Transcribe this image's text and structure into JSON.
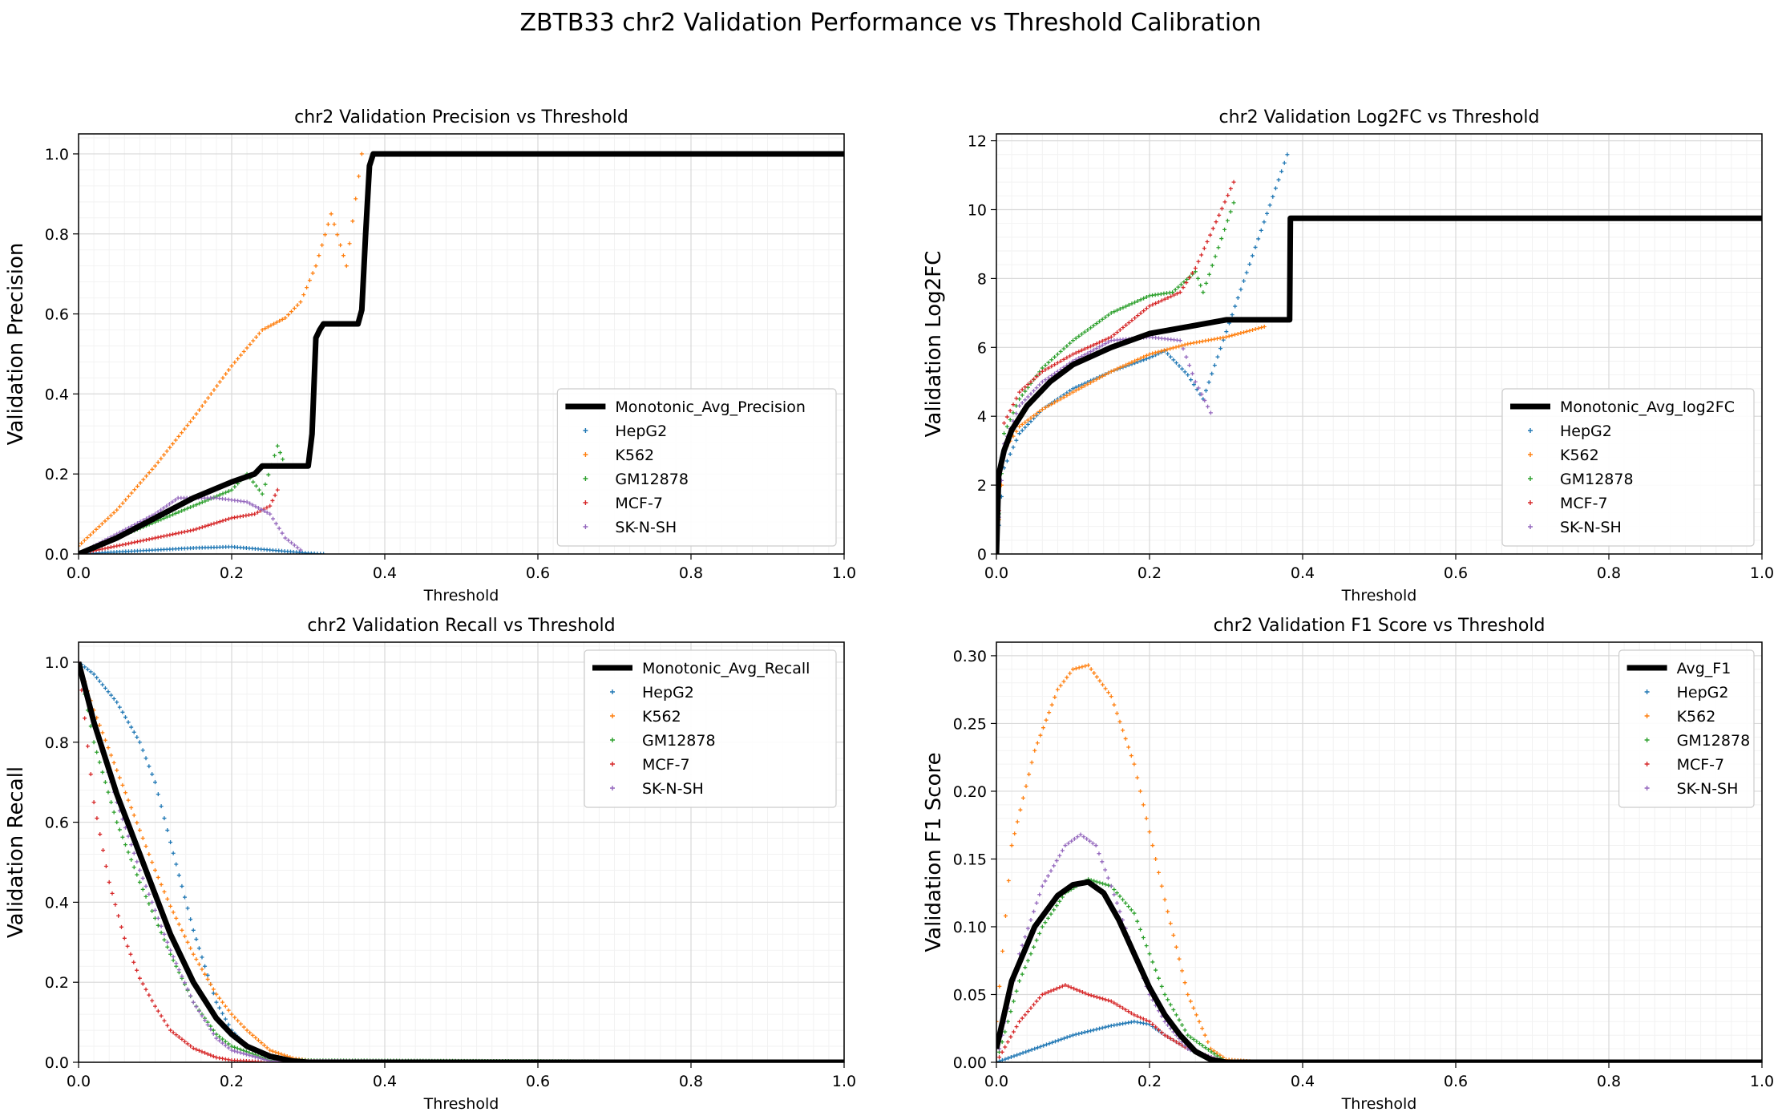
{
  "figure_title": "ZBTB33 chr2 Validation Performance vs Threshold Calibration",
  "colors": {
    "HepG2": "#1f77b4",
    "K562": "#ff7f0e",
    "GM12878": "#2ca02c",
    "MCF-7": "#d62728",
    "SK-N-SH": "#9467bd",
    "avg": "#000000"
  },
  "chart_data": [
    {
      "type": "line",
      "title": "chr2 Validation Precision vs Threshold",
      "xlabel": "Threshold",
      "ylabel": "Validation Precision",
      "xlim": [
        0,
        1
      ],
      "ylim": [
        0,
        1.05
      ],
      "xticks": [
        0.0,
        0.2,
        0.4,
        0.6,
        0.8,
        1.0
      ],
      "yticks": [
        0.0,
        0.2,
        0.4,
        0.6,
        0.8,
        1.0
      ],
      "tick_format": 1,
      "grid": true,
      "legend_position": "lower-right",
      "legend": [
        "Monotonic_Avg_Precision",
        "HepG2",
        "K562",
        "GM12878",
        "MCF-7",
        "SK-N-SH"
      ],
      "avg": {
        "name": "Monotonic_Avg_Precision",
        "x": [
          0,
          0.05,
          0.1,
          0.15,
          0.2,
          0.23,
          0.24,
          0.3,
          0.305,
          0.31,
          0.315,
          0.32,
          0.33,
          0.365,
          0.37,
          0.375,
          0.38,
          0.385,
          1.0
        ],
        "y": [
          0,
          0.04,
          0.09,
          0.14,
          0.18,
          0.2,
          0.22,
          0.22,
          0.3,
          0.54,
          0.56,
          0.575,
          0.575,
          0.575,
          0.61,
          0.8,
          0.97,
          1.0,
          1.0
        ]
      },
      "series": [
        {
          "name": "HepG2",
          "x": [
            0,
            0.05,
            0.1,
            0.15,
            0.2,
            0.25,
            0.3,
            0.32
          ],
          "y": [
            0,
            0.005,
            0.01,
            0.015,
            0.018,
            0.01,
            0.002,
            0.0
          ]
        },
        {
          "name": "K562",
          "x": [
            0,
            0.05,
            0.1,
            0.15,
            0.2,
            0.24,
            0.27,
            0.29,
            0.31,
            0.33,
            0.35,
            0.37
          ],
          "y": [
            0.02,
            0.11,
            0.22,
            0.34,
            0.47,
            0.56,
            0.59,
            0.63,
            0.72,
            0.85,
            0.72,
            1.0
          ]
        },
        {
          "name": "GM12878",
          "x": [
            0,
            0.05,
            0.1,
            0.15,
            0.2,
            0.22,
            0.24,
            0.26,
            0.27
          ],
          "y": [
            0,
            0.04,
            0.08,
            0.12,
            0.16,
            0.2,
            0.15,
            0.27,
            0.22
          ]
        },
        {
          "name": "MCF-7",
          "x": [
            0,
            0.05,
            0.1,
            0.15,
            0.2,
            0.23,
            0.25,
            0.26
          ],
          "y": [
            0,
            0.02,
            0.04,
            0.06,
            0.09,
            0.1,
            0.12,
            0.16
          ]
        },
        {
          "name": "SK-N-SH",
          "x": [
            0,
            0.05,
            0.1,
            0.13,
            0.18,
            0.22,
            0.25,
            0.27,
            0.29
          ],
          "y": [
            0,
            0.05,
            0.1,
            0.14,
            0.14,
            0.13,
            0.1,
            0.04,
            0.01
          ]
        }
      ]
    },
    {
      "type": "line",
      "title": "chr2 Validation Log2FC vs Threshold",
      "xlabel": "Threshold",
      "ylabel": "Validation Log2FC",
      "xlim": [
        0,
        1
      ],
      "ylim": [
        0,
        12.2
      ],
      "xticks": [
        0.0,
        0.2,
        0.4,
        0.6,
        0.8,
        1.0
      ],
      "yticks": [
        0,
        2,
        4,
        6,
        8,
        10,
        12
      ],
      "tick_format": 0,
      "grid": true,
      "legend_position": "lower-right",
      "legend": [
        "Monotonic_Avg_log2FC",
        "HepG2",
        "K562",
        "GM12878",
        "MCF-7",
        "SK-N-SH"
      ],
      "avg": {
        "name": "Monotonic_Avg_log2FC",
        "x": [
          0,
          0.003,
          0.01,
          0.02,
          0.04,
          0.07,
          0.1,
          0.15,
          0.2,
          0.25,
          0.3,
          0.383,
          0.384,
          1.0
        ],
        "y": [
          0,
          2.3,
          3.0,
          3.6,
          4.3,
          5.0,
          5.5,
          6.0,
          6.4,
          6.6,
          6.8,
          6.8,
          9.75,
          9.75
        ]
      },
      "series": [
        {
          "name": "HepG2",
          "x": [
            0,
            0.01,
            0.03,
            0.06,
            0.1,
            0.15,
            0.2,
            0.22,
            0.25,
            0.27,
            0.38
          ],
          "y": [
            0,
            2.5,
            3.5,
            4.2,
            4.8,
            5.3,
            5.7,
            5.9,
            5.2,
            4.5,
            11.6
          ]
        },
        {
          "name": "K562",
          "x": [
            0,
            0.01,
            0.03,
            0.06,
            0.1,
            0.15,
            0.2,
            0.25,
            0.3,
            0.35
          ],
          "y": [
            0,
            3.0,
            3.7,
            4.2,
            4.7,
            5.3,
            5.8,
            6.1,
            6.3,
            6.6
          ]
        },
        {
          "name": "GM12878",
          "x": [
            0,
            0.01,
            0.03,
            0.06,
            0.1,
            0.15,
            0.2,
            0.23,
            0.26,
            0.27,
            0.31
          ],
          "y": [
            0,
            3.5,
            4.5,
            5.4,
            6.2,
            7.0,
            7.5,
            7.6,
            8.2,
            7.6,
            10.2
          ]
        },
        {
          "name": "MCF-7",
          "x": [
            0,
            0.01,
            0.03,
            0.06,
            0.1,
            0.15,
            0.2,
            0.24,
            0.26,
            0.31
          ],
          "y": [
            0,
            3.8,
            4.7,
            5.3,
            5.8,
            6.3,
            7.2,
            7.6,
            8.3,
            10.8
          ]
        },
        {
          "name": "SK-N-SH",
          "x": [
            0,
            0.01,
            0.03,
            0.06,
            0.1,
            0.15,
            0.2,
            0.24,
            0.26,
            0.28
          ],
          "y": [
            0,
            3.2,
            4.3,
            5.0,
            5.6,
            6.2,
            6.3,
            6.2,
            5.0,
            4.1
          ]
        }
      ]
    },
    {
      "type": "line",
      "title": "chr2 Validation Recall vs Threshold",
      "xlabel": "Threshold",
      "ylabel": "Validation Recall",
      "xlim": [
        0,
        1
      ],
      "ylim": [
        0,
        1.05
      ],
      "xticks": [
        0.0,
        0.2,
        0.4,
        0.6,
        0.8,
        1.0
      ],
      "yticks": [
        0.0,
        0.2,
        0.4,
        0.6,
        0.8,
        1.0
      ],
      "tick_format": 1,
      "grid": true,
      "legend_position": "top-right",
      "legend": [
        "Monotonic_Avg_Recall",
        "HepG2",
        "K562",
        "GM12878",
        "MCF-7",
        "SK-N-SH"
      ],
      "avg": {
        "name": "Monotonic_Avg_Recall",
        "x": [
          0,
          0.02,
          0.05,
          0.08,
          0.1,
          0.12,
          0.15,
          0.18,
          0.2,
          0.22,
          0.25,
          0.28,
          0.3,
          1.0
        ],
        "y": [
          1.0,
          0.85,
          0.67,
          0.52,
          0.42,
          0.32,
          0.2,
          0.11,
          0.07,
          0.04,
          0.015,
          0.003,
          0.0,
          0.0
        ]
      },
      "series": [
        {
          "name": "HepG2",
          "x": [
            0,
            0.02,
            0.05,
            0.08,
            0.1,
            0.12,
            0.15,
            0.18,
            0.2,
            0.22,
            0.25,
            0.3,
            1.0
          ],
          "y": [
            1.0,
            0.97,
            0.9,
            0.8,
            0.7,
            0.55,
            0.33,
            0.15,
            0.08,
            0.04,
            0.01,
            0.0,
            0.0
          ]
        },
        {
          "name": "K562",
          "x": [
            0,
            0.02,
            0.05,
            0.08,
            0.1,
            0.12,
            0.15,
            0.18,
            0.2,
            0.22,
            0.25,
            0.28,
            0.32,
            1.0
          ],
          "y": [
            1.0,
            0.88,
            0.73,
            0.58,
            0.48,
            0.39,
            0.27,
            0.17,
            0.12,
            0.08,
            0.03,
            0.01,
            0.0,
            0.0
          ]
        },
        {
          "name": "GM12878",
          "x": [
            0,
            0.02,
            0.05,
            0.08,
            0.1,
            0.12,
            0.15,
            0.18,
            0.2,
            0.25,
            1.0
          ],
          "y": [
            1.0,
            0.8,
            0.6,
            0.45,
            0.36,
            0.27,
            0.15,
            0.07,
            0.04,
            0.005,
            0.0
          ]
        },
        {
          "name": "MCF-7",
          "x": [
            0,
            0.02,
            0.04,
            0.06,
            0.08,
            0.1,
            0.12,
            0.15,
            0.18,
            0.2,
            0.25,
            1.0
          ],
          "y": [
            1.0,
            0.65,
            0.45,
            0.31,
            0.21,
            0.14,
            0.08,
            0.035,
            0.012,
            0.005,
            0.0,
            0.0
          ]
        },
        {
          "name": "SK-N-SH",
          "x": [
            0,
            0.02,
            0.05,
            0.08,
            0.1,
            0.12,
            0.15,
            0.18,
            0.2,
            0.25,
            1.0
          ],
          "y": [
            1.0,
            0.85,
            0.65,
            0.48,
            0.38,
            0.28,
            0.15,
            0.06,
            0.03,
            0.003,
            0.0
          ]
        }
      ]
    },
    {
      "type": "line",
      "title": "chr2 Validation F1 Score vs Threshold",
      "xlabel": "Threshold",
      "ylabel": "Validation F1 Score",
      "xlim": [
        0,
        1
      ],
      "ylim": [
        0,
        0.31
      ],
      "xticks": [
        0.0,
        0.2,
        0.4,
        0.6,
        0.8,
        1.0
      ],
      "yticks": [
        0.0,
        0.05,
        0.1,
        0.15,
        0.2,
        0.25,
        0.3
      ],
      "tick_format": 2,
      "grid": true,
      "legend_position": "top-right",
      "legend": [
        "Avg_F1",
        "HepG2",
        "K562",
        "GM12878",
        "MCF-7",
        "SK-N-SH"
      ],
      "avg": {
        "name": "Avg_F1",
        "x": [
          0,
          0.02,
          0.05,
          0.08,
          0.1,
          0.12,
          0.14,
          0.16,
          0.18,
          0.2,
          0.22,
          0.24,
          0.26,
          0.28,
          0.3,
          1.0
        ],
        "y": [
          0.01,
          0.06,
          0.1,
          0.123,
          0.131,
          0.133,
          0.125,
          0.105,
          0.08,
          0.055,
          0.035,
          0.02,
          0.008,
          0.002,
          0.0,
          0.0
        ]
      },
      "series": [
        {
          "name": "HepG2",
          "x": [
            0,
            0.05,
            0.1,
            0.15,
            0.18,
            0.2,
            0.22,
            0.25,
            0.28,
            0.3,
            1.0
          ],
          "y": [
            0,
            0.01,
            0.02,
            0.027,
            0.03,
            0.028,
            0.02,
            0.01,
            0.002,
            0.0,
            0.0
          ]
        },
        {
          "name": "K562",
          "x": [
            0,
            0.02,
            0.05,
            0.08,
            0.1,
            0.12,
            0.15,
            0.18,
            0.2,
            0.22,
            0.25,
            0.28,
            0.3,
            0.35,
            1.0
          ],
          "y": [
            0.03,
            0.16,
            0.23,
            0.275,
            0.29,
            0.293,
            0.27,
            0.22,
            0.17,
            0.12,
            0.05,
            0.01,
            0.002,
            0.0,
            0.0
          ]
        },
        {
          "name": "GM12878",
          "x": [
            0,
            0.03,
            0.06,
            0.09,
            0.12,
            0.15,
            0.18,
            0.2,
            0.22,
            0.25,
            0.3,
            1.0
          ],
          "y": [
            0.0,
            0.06,
            0.1,
            0.125,
            0.135,
            0.13,
            0.11,
            0.08,
            0.05,
            0.02,
            0.0,
            0.0
          ]
        },
        {
          "name": "MCF-7",
          "x": [
            0,
            0.03,
            0.06,
            0.09,
            0.12,
            0.15,
            0.18,
            0.2,
            0.22,
            0.25,
            0.3,
            1.0
          ],
          "y": [
            0.0,
            0.03,
            0.05,
            0.057,
            0.05,
            0.045,
            0.035,
            0.03,
            0.02,
            0.01,
            0.0,
            0.0
          ]
        },
        {
          "name": "SK-N-SH",
          "x": [
            0,
            0.03,
            0.06,
            0.09,
            0.11,
            0.13,
            0.15,
            0.18,
            0.2,
            0.22,
            0.25,
            0.3,
            1.0
          ],
          "y": [
            0.0,
            0.08,
            0.13,
            0.16,
            0.168,
            0.16,
            0.13,
            0.08,
            0.05,
            0.03,
            0.01,
            0.0,
            0.0
          ]
        }
      ]
    }
  ]
}
